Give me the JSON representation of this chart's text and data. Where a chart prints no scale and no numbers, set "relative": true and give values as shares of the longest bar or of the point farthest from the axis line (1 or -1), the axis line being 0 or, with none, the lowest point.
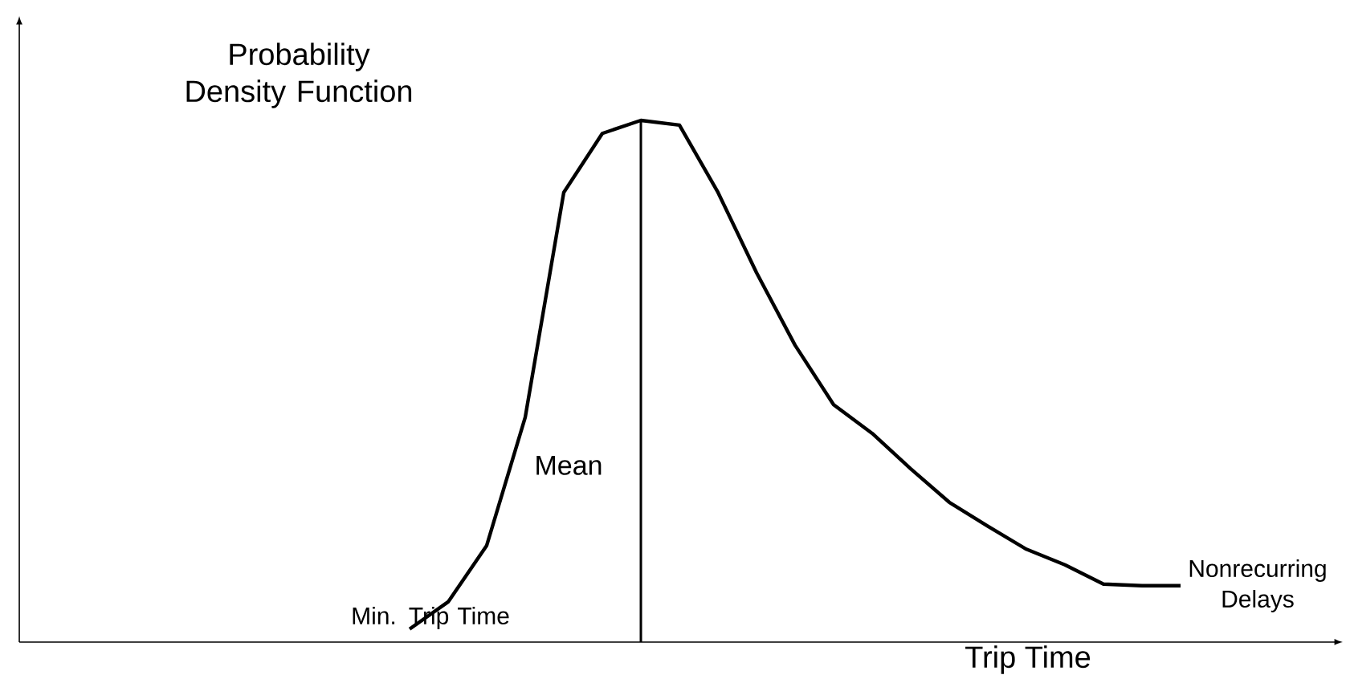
{
  "chart_data": {
    "type": "line",
    "relative": true,
    "ylabel": "Probability\nDensity Function",
    "xlabel": "Trip Time",
    "categories": [
      null,
      null,
      null,
      null,
      null,
      null,
      null,
      null,
      null,
      null,
      null,
      null,
      null,
      null,
      null,
      null,
      null,
      null,
      null,
      null,
      null
    ],
    "values": [
      0.025,
      0.077,
      0.185,
      0.431,
      0.862,
      0.975,
      1,
      0.991,
      0.862,
      0.708,
      0.569,
      0.455,
      0.4,
      0.332,
      0.268,
      0.222,
      0.178,
      0.148,
      0.111,
      0.108,
      0.108
    ],
    "color": "#000000",
    "marker": "none",
    "line_style": "solid",
    "annotations": [
      "Min. Trip Time",
      "Nonrecurring\nDelays",
      "Mean"
    ]
  }
}
